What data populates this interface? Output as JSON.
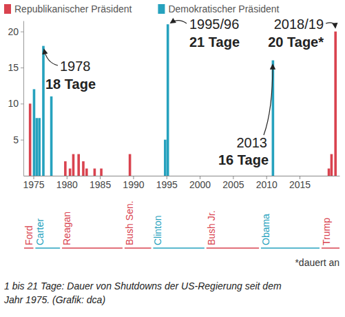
{
  "chart_data": {
    "type": "bar",
    "legend": "top-left",
    "grid": false,
    "xlim": [
      1973.5,
      2021
    ],
    "xticks": [
      1975,
      1980,
      1985,
      1990,
      1995,
      2000,
      2005,
      2010,
      2015
    ],
    "ylim": [
      0,
      21.5
    ],
    "yticks": [
      5,
      10,
      15,
      20
    ],
    "series": [
      {
        "name": "Republikanischer Präsident",
        "color": "#d9434f",
        "x": [
          1974.5,
          1979.8,
          1980.5,
          1981.0,
          1981.8,
          1982.5,
          1983.0,
          1984.2,
          1985.2,
          1989.5,
          2019.4,
          2019.8,
          2020.4
        ],
        "values": [
          10,
          2,
          1,
          3,
          3,
          2,
          1,
          1,
          1,
          3,
          1,
          3,
          20
        ]
      },
      {
        "name": "Demokratischer Präsident",
        "color": "#26a2be",
        "x": [
          1975.1,
          1975.5,
          1975.9,
          1976.5,
          1977.7,
          1994.8,
          1995.2,
          2011.0
        ],
        "values": [
          12,
          8,
          8,
          18,
          11,
          5,
          21,
          16
        ]
      }
    ],
    "annotations": [
      {
        "label": "1978",
        "text": "18 Tage"
      },
      {
        "label": "1995/96",
        "text": "21 Tage"
      },
      {
        "label": "2018/19",
        "text": "20 Tage*"
      },
      {
        "label": "2013",
        "text": "16 Tage"
      }
    ],
    "presidents": [
      {
        "name": "Ford",
        "color": "#d9434f",
        "start": 1973.6,
        "end": 1975.0
      },
      {
        "name": "Carter",
        "color": "#26a2be",
        "start": 1975.3,
        "end": 1979.0
      },
      {
        "name": "Reagan",
        "color": "#d9434f",
        "start": 1979.3,
        "end": 1988.4
      },
      {
        "name": "Bush Sen.",
        "color": "#d9434f",
        "start": 1988.7,
        "end": 1992.7
      },
      {
        "name": "Clinton",
        "color": "#26a2be",
        "start": 1993.0,
        "end": 2000.7
      },
      {
        "name": "Bush Jr.",
        "color": "#d9434f",
        "start": 2001.0,
        "end": 2008.9
      },
      {
        "name": "Obama",
        "color": "#26a2be",
        "start": 2009.2,
        "end": 2018.0
      },
      {
        "name": "Trump",
        "color": "#d9434f",
        "start": 2018.3,
        "end": 2021
      }
    ],
    "footnote": "*dauert an",
    "caption": [
      "1 bis 21 Tage: Dauer von Shutdowns der US-Regierung seit dem",
      "Jahr 1975. (Grafik: dca)"
    ]
  }
}
